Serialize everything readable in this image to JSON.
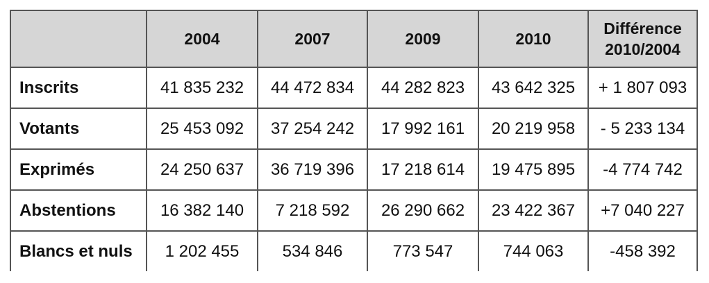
{
  "table": {
    "header": [
      "",
      "2004",
      "2007",
      "2009",
      "2010",
      "Différence 2010/2004"
    ],
    "rows": [
      [
        "Inscrits",
        "41 835 232",
        "44 472 834",
        "44 282 823",
        "43 642 325",
        "+ 1 807 093"
      ],
      [
        "Votants",
        "25 453 092",
        "37 254 242",
        "17 992 161",
        "20 219 958",
        "- 5 233 134"
      ],
      [
        "Exprimés",
        "24 250 637",
        "36 719 396",
        "17 218 614",
        "19 475 895",
        "-4 774 742"
      ],
      [
        "Abstentions",
        "16 382 140",
        "7 218 592",
        "26 290 662",
        "23 422 367",
        "+7 040 227"
      ],
      [
        "Blancs et nuls",
        "1 202 455",
        "534 846",
        "773 547",
        "744 063",
        "-458 392"
      ]
    ]
  }
}
